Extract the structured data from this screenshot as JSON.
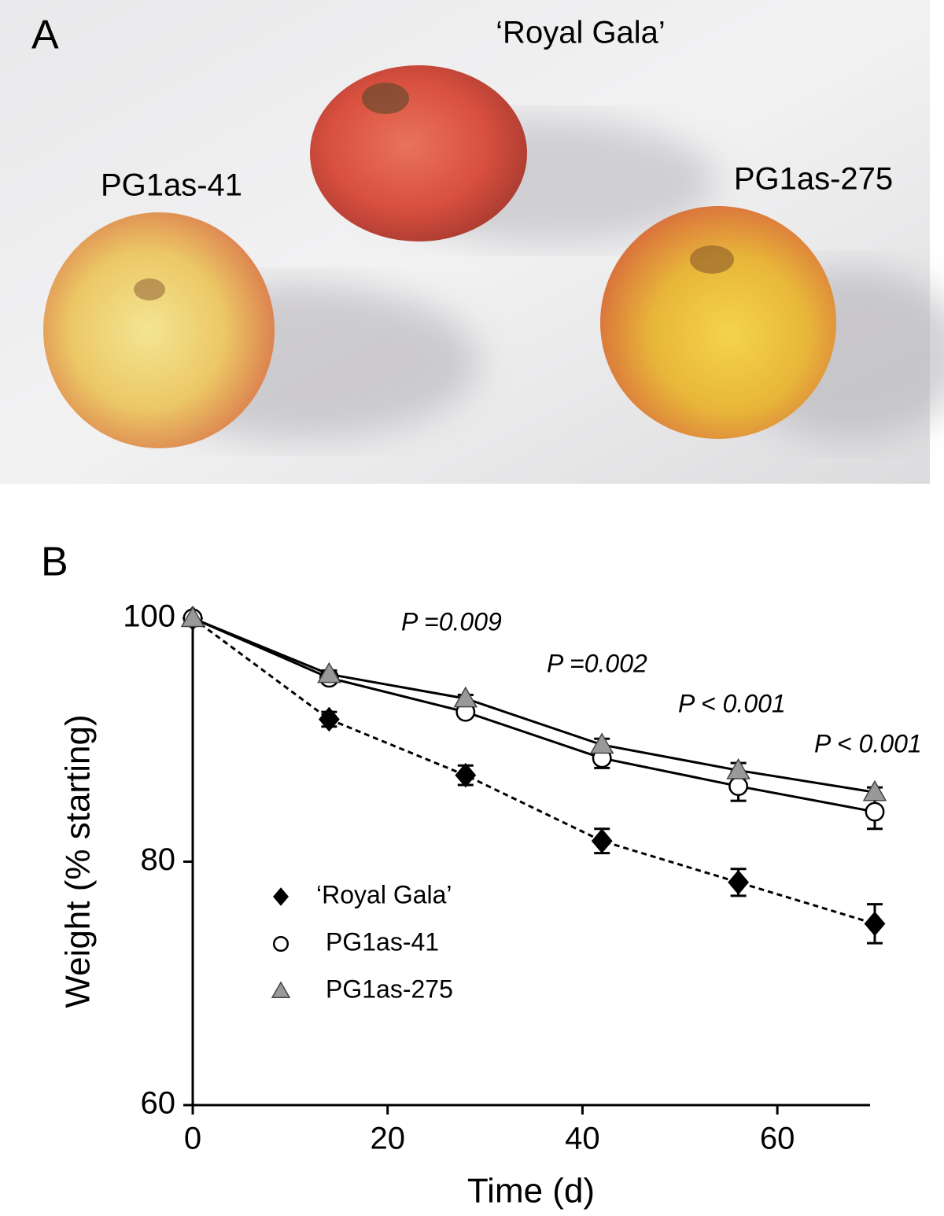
{
  "panel_a": {
    "label": "A",
    "apple_labels": [
      "‘Royal Gala’",
      "PG1as-41",
      "PG1as-275"
    ]
  },
  "chart_data": {
    "type": "line",
    "panel_label": "B",
    "xlabel": "Time (d)",
    "ylabel": "Weight (% starting)",
    "x": [
      0,
      14,
      28,
      42,
      56,
      70
    ],
    "series": [
      {
        "name": "‘Royal Gala’",
        "color": "#000000",
        "marker": "diamond",
        "dashed": true,
        "values": [
          100,
          91.7,
          87.1,
          81.7,
          78.3,
          74.9
        ],
        "errors": [
          0,
          0.6,
          0.8,
          1.0,
          1.1,
          1.6
        ]
      },
      {
        "name": "PG1as-41",
        "color": "#ffffff",
        "marker": "circle",
        "dashed": false,
        "values": [
          100,
          95.1,
          92.3,
          88.5,
          86.2,
          84.1
        ],
        "errors": [
          0,
          0.3,
          0.4,
          0.8,
          1.2,
          1.4
        ]
      },
      {
        "name": "PG1as-275",
        "color": "#999999",
        "marker": "triangle",
        "dashed": false,
        "values": [
          100,
          95.4,
          93.4,
          89.6,
          87.5,
          85.7
        ],
        "errors": [
          0,
          0.3,
          0.3,
          0.5,
          0.6,
          0.4
        ]
      }
    ],
    "annotations": [
      "P =0.009",
      "P =0.002",
      "P < 0.001",
      "P < 0.001"
    ],
    "xlim": [
      0,
      70
    ],
    "ylim": [
      60,
      100
    ],
    "xticks": [
      0,
      20,
      40,
      60
    ],
    "yticks": [
      60,
      80,
      100
    ]
  }
}
